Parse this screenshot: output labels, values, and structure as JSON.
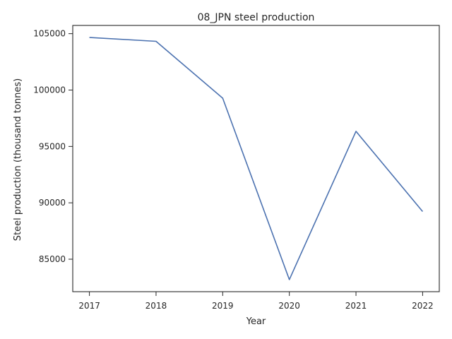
{
  "chart_data": {
    "type": "line",
    "title": "08_JPN steel production",
    "xlabel": "Year",
    "ylabel": "Steel production (thousand tonnes)",
    "x": [
      2017,
      2018,
      2019,
      2020,
      2021,
      2022
    ],
    "x_tick_labels": [
      "2017",
      "2018",
      "2019",
      "2020",
      "2021",
      "2022"
    ],
    "series": [
      {
        "values": [
          104660,
          104320,
          99280,
          83190,
          96340,
          89230
        ]
      }
    ],
    "y_ticks": [
      85000,
      90000,
      95000,
      100000,
      105000
    ],
    "y_tick_labels": [
      "85000",
      "90000",
      "95000",
      "100000",
      "105000"
    ],
    "xlim": [
      2016.75,
      2022.25
    ],
    "ylim": [
      82120,
      105730
    ],
    "grid": false,
    "line_color": "#4c72b0",
    "axis_color": "#262626"
  }
}
